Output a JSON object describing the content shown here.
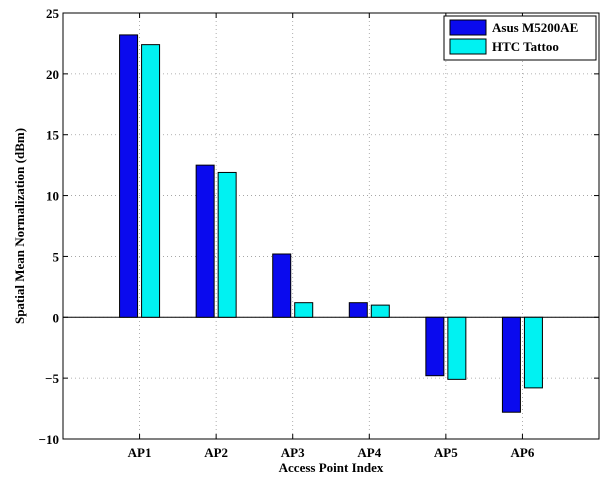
{
  "chart_data": {
    "type": "bar",
    "title": "",
    "xlabel": "Access Point Index",
    "ylabel": "Spatial Mean Normalization (dBm)",
    "categories": [
      "AP1",
      "AP2",
      "AP3",
      "AP4",
      "AP5",
      "AP6"
    ],
    "series": [
      {
        "name": "Asus M5200AE",
        "values": [
          23.2,
          12.5,
          5.2,
          1.2,
          -4.8,
          -7.8
        ],
        "color": "#0a0aee"
      },
      {
        "name": "HTC Tattoo",
        "values": [
          22.4,
          11.9,
          1.2,
          1.0,
          -5.1,
          -5.8
        ],
        "color": "#00f2f2"
      }
    ],
    "ylim": [
      -10,
      25
    ],
    "yticks": [
      -10,
      -5,
      0,
      5,
      10,
      15,
      20,
      25
    ],
    "ytick_labels": [
      "−10",
      "−5",
      "0",
      "5",
      "10",
      "15",
      "20",
      "25"
    ],
    "grid": true,
    "legend_position": "top-right"
  }
}
